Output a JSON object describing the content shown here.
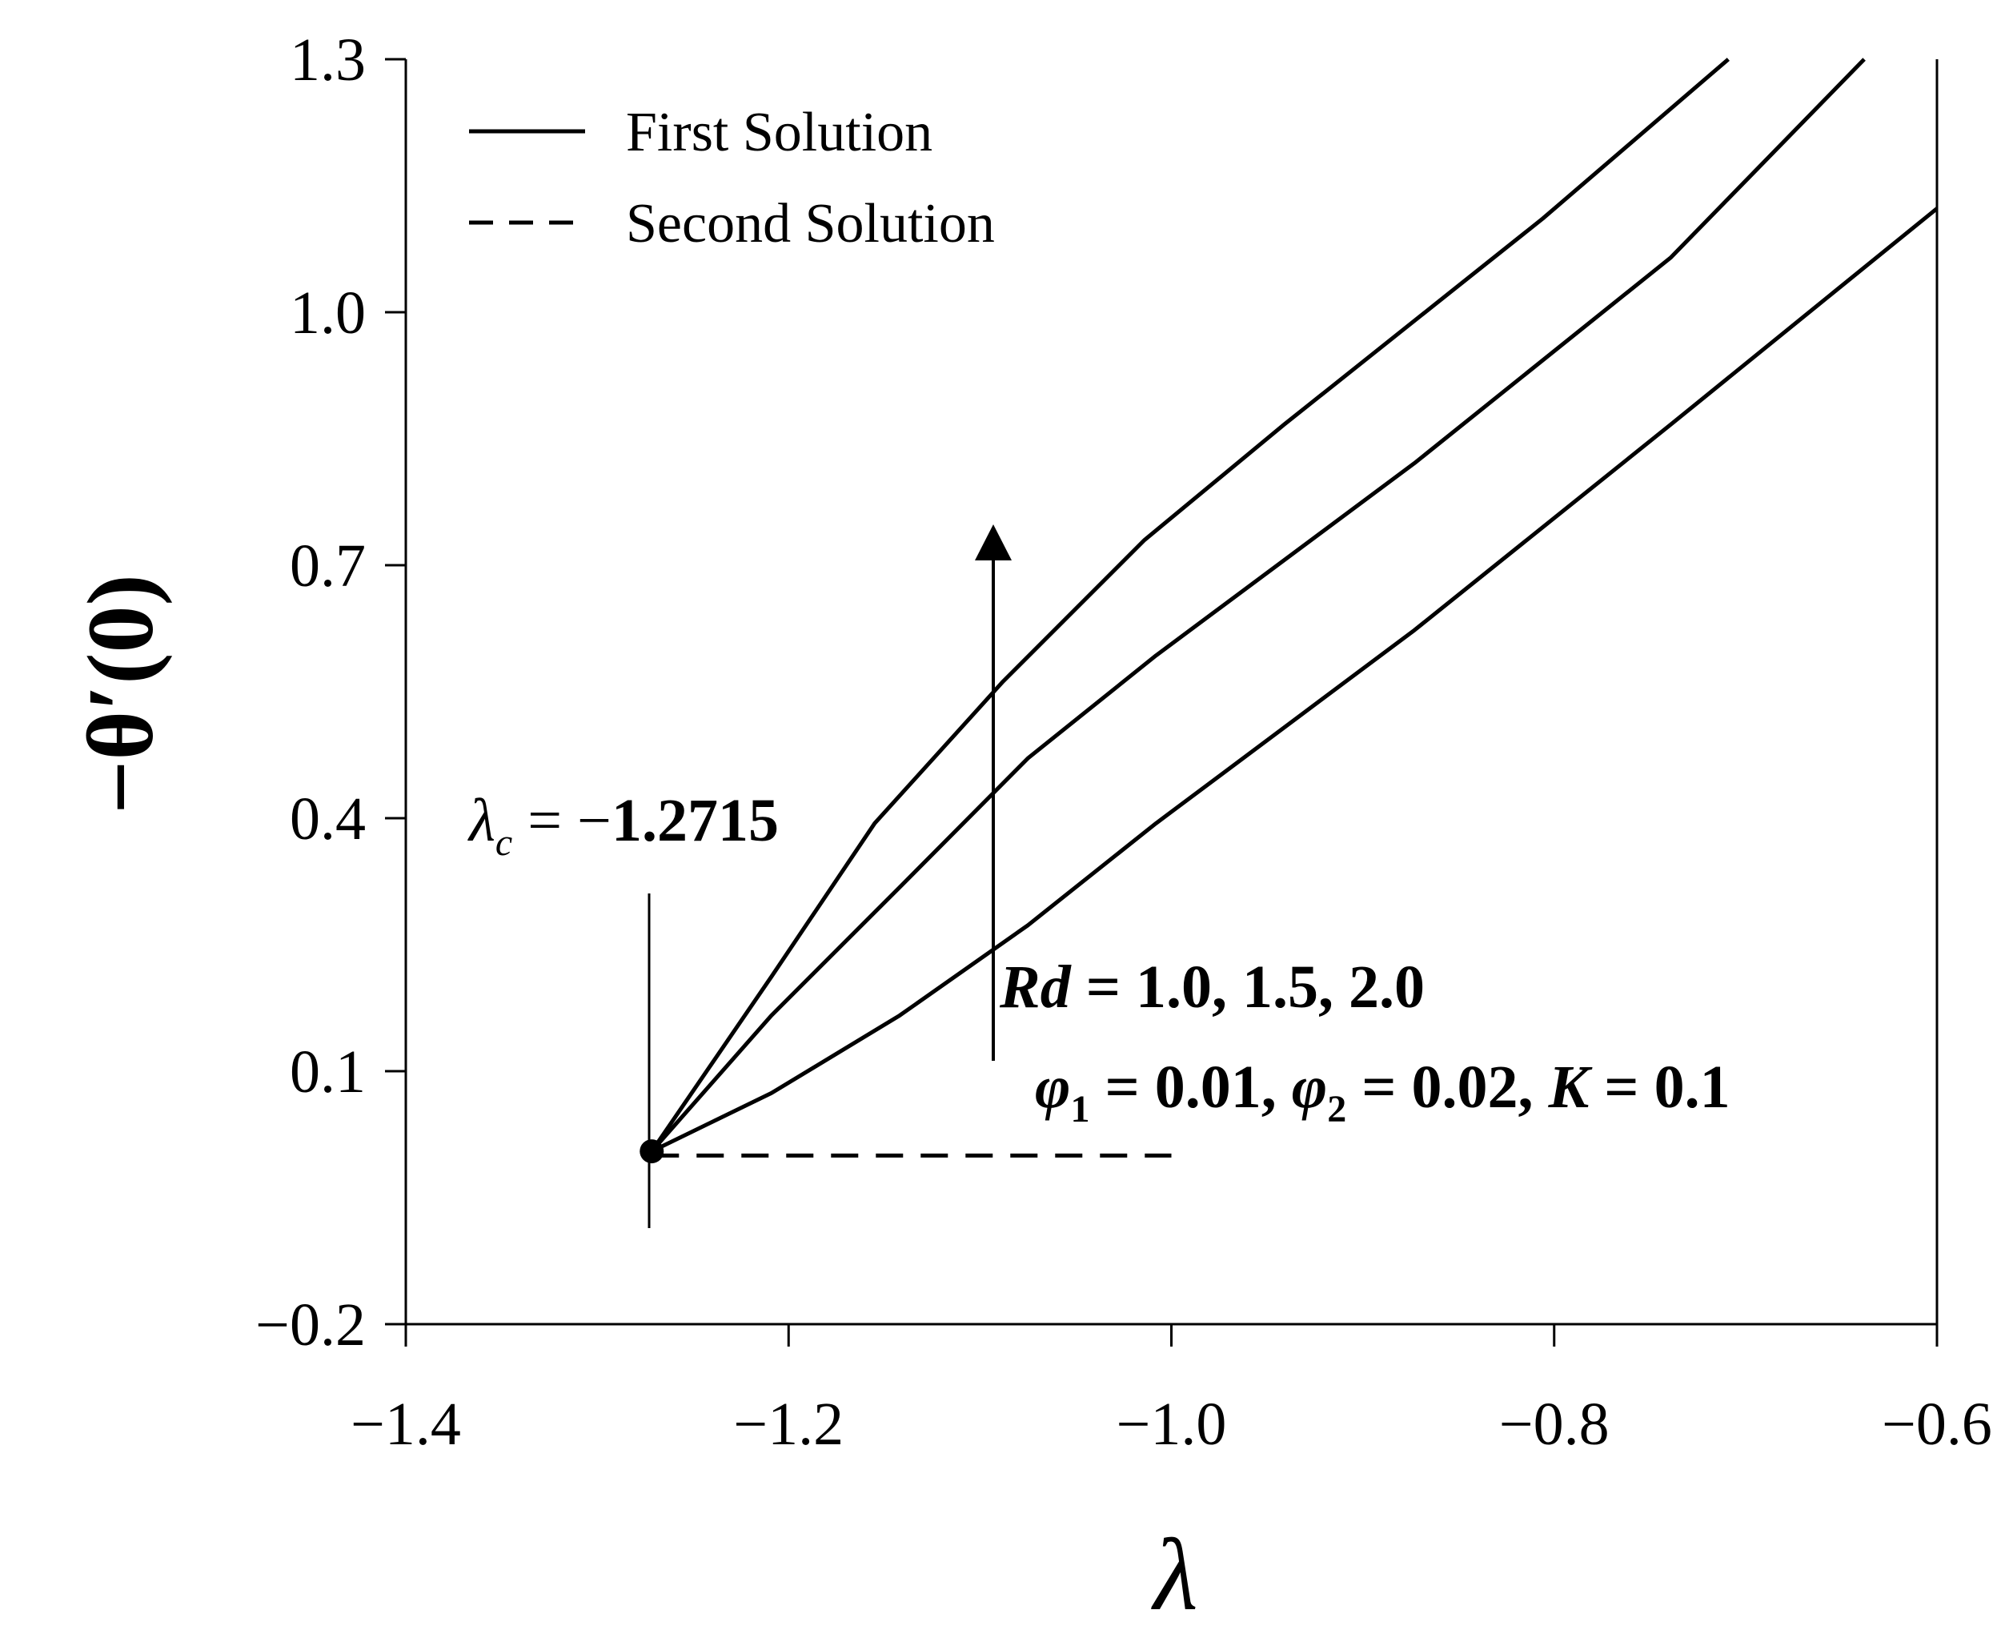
{
  "chart_data": {
    "type": "line",
    "x_label": "λ",
    "y_label": "−θ′(0)",
    "xlim": [
      -1.4,
      -0.6
    ],
    "ylim": [
      -0.2,
      1.3
    ],
    "xticks": [
      {
        "value": -1.4,
        "label": "−1.4"
      },
      {
        "value": -1.2,
        "label": "−1.2"
      },
      {
        "value": -1.0,
        "label": "−1.0"
      },
      {
        "value": -0.8,
        "label": "−0.8"
      },
      {
        "value": -0.6,
        "label": "−0.6"
      }
    ],
    "yticks": [
      {
        "value": -0.2,
        "label": "−0.2"
      },
      0.1,
      0.4,
      0.7,
      {
        "value": 1.0,
        "label": "1.0"
      },
      1.3
    ],
    "color": "#000000",
    "series": [
      {
        "name": "First Solution",
        "style": "solid",
        "curves": [
          {
            "x": [
              -1.2715,
              -1.209,
              -1.142,
              -1.075,
              -1.008,
              -0.873,
              -0.739,
              -0.6
            ],
            "y": [
              0.005,
              0.074,
              0.166,
              0.273,
              0.394,
              0.623,
              0.867,
              1.123
            ]
          },
          {
            "x": [
              -1.2715,
              -1.209,
              -1.142,
              -1.075,
              -1.008,
              -0.873,
              -0.739,
              -0.638
            ],
            "y": [
              0.005,
              0.166,
              0.318,
              0.471,
              0.593,
              0.821,
              1.065,
              1.3
            ]
          },
          {
            "x": [
              -1.2715,
              -1.209,
              -1.155,
              -1.088,
              -1.014,
              -0.941,
              -0.806,
              -0.709
            ],
            "y": [
              0.005,
              0.212,
              0.394,
              0.562,
              0.73,
              0.867,
              1.111,
              1.3
            ]
          }
        ]
      },
      {
        "name": "Second Solution",
        "style": "dashed",
        "curves": [
          {
            "x": [
              -1.2715,
              -1.0
            ],
            "y": [
              0.0,
              0.0
            ]
          }
        ]
      }
    ],
    "critical_point": {
      "x": -1.2715,
      "y": 0.005
    },
    "annotations": [
      [
        {
          "t": "λ",
          "italic": true
        },
        {
          "t": "c",
          "italic": true,
          "sub": true
        },
        {
          "t": " = −"
        },
        {
          "t": "1.2715",
          "bold": true
        }
      ],
      [
        {
          "t": "Rd",
          "italic": true,
          "bold": true
        },
        {
          "t": " = 1.0,  1.5,  2.0",
          "bold": true
        }
      ],
      [
        {
          "t": "φ",
          "italic": true,
          "bold": true
        },
        {
          "t": "1",
          "bold": true,
          "sub": true
        },
        {
          "t": " = 0.01,  ",
          "bold": true
        },
        {
          "t": "φ",
          "italic": true,
          "bold": true
        },
        {
          "t": "2",
          "bold": true,
          "sub": true
        },
        {
          "t": " = 0.02, ",
          "bold": true
        },
        {
          "t": "K",
          "italic": true,
          "bold": true
        },
        {
          "t": " = 0.1",
          "bold": true
        }
      ]
    ]
  }
}
